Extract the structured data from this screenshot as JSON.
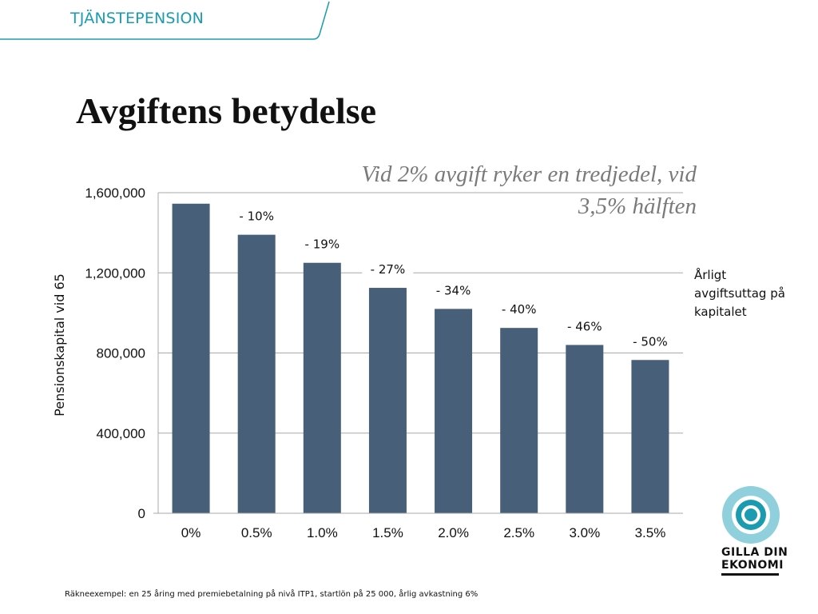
{
  "header": {
    "title": "TJÄNSTEPENSION",
    "accent_color": "#1a9bb0"
  },
  "page_title": "Avgiftens betydelse",
  "subtitle": "Vid 2% avgift ryker en tredjedel, vid 3,5% hälften",
  "legend_note": "Årligt avgiftsuttag på kapitalet",
  "logo": {
    "icon": "target-icon",
    "line1": "GILLA DIN",
    "line2": "EKONOMI",
    "ring_color": "#8fd0dc",
    "center_color": "#1a9bb0"
  },
  "footnote": "Räkneexempel:  en 25 åring med premiebetalning på nivå ITP1, startlön på 25 000, årlig avkastning 6%",
  "chart_data": {
    "type": "bar",
    "categories": [
      "0%",
      "0.5%",
      "1.0%",
      "1.5%",
      "2.0%",
      "2.5%",
      "3.0%",
      "3.5%"
    ],
    "values": [
      1545000,
      1390000,
      1250000,
      1125000,
      1020000,
      925000,
      840000,
      765000
    ],
    "data_labels": [
      "",
      "- 10%",
      "- 19%",
      "- 27%",
      "- 34%",
      "- 40%",
      "- 46%",
      "- 50%"
    ],
    "title": "",
    "xlabel": "",
    "ylabel": "Pensionskapital vid 65",
    "ylim": [
      0,
      1600000
    ],
    "yticks": [
      0,
      400000,
      800000,
      1200000,
      1600000
    ],
    "ytick_labels": [
      "0",
      "400,000",
      "800,000",
      "1,200,000",
      "1,600,000"
    ],
    "grid": true,
    "bar_color": "#475f78"
  }
}
